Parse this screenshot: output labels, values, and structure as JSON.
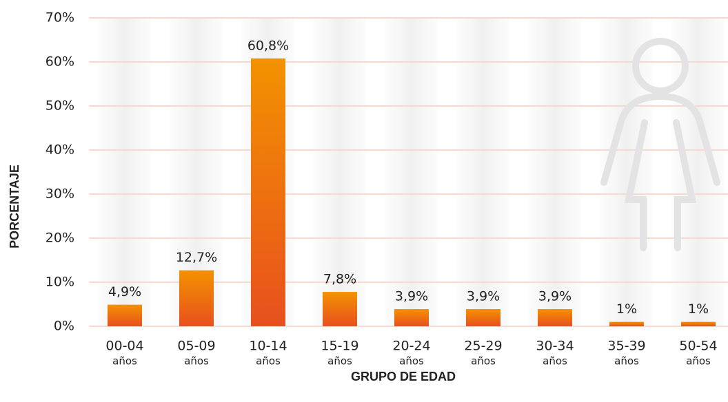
{
  "chart_data": {
    "type": "bar",
    "xlabel": "GRUPO DE EDAD",
    "ylabel": "PORCENTAJE",
    "categories": [
      "00-04",
      "05-09",
      "10-14",
      "15-19",
      "20-24",
      "25-29",
      "30-34",
      "35-39",
      "50-54"
    ],
    "category_unit": "años",
    "values": [
      4.9,
      12.7,
      60.8,
      7.8,
      3.9,
      3.9,
      3.9,
      1,
      1
    ],
    "value_labels": [
      "4,9%",
      "12,7%",
      "60,8%",
      "7,8%",
      "3,9%",
      "3,9%",
      "3,9%",
      "1%",
      "1%"
    ],
    "color": [
      "#f39200",
      "#e8501e"
    ],
    "ylim": [
      0,
      70
    ],
    "yticks": [
      {
        "value": 0,
        "label": "0%"
      },
      {
        "value": 10,
        "label": "10%"
      },
      {
        "value": 20,
        "label": "20%"
      },
      {
        "value": 30,
        "label": "30%"
      },
      {
        "value": 40,
        "label": "40%"
      },
      {
        "value": 50,
        "label": "50%"
      },
      {
        "value": 60,
        "label": "60%"
      },
      {
        "value": 70,
        "label": "70%"
      }
    ],
    "grid": true
  }
}
